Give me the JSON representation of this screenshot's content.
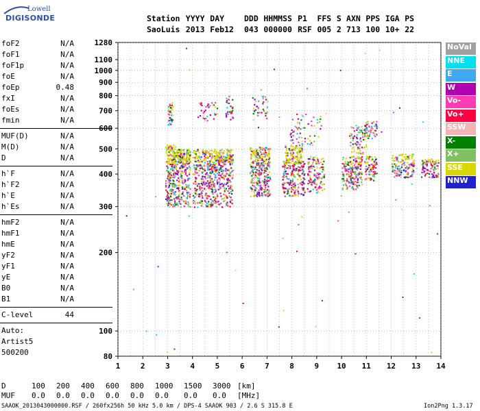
{
  "brand": {
    "line1": "Lowell",
    "line2": "DIGISONDE"
  },
  "header": {
    "labels": [
      "Station",
      "YYYY",
      "DAY",
      "DDD",
      "HHMMSS",
      "P1",
      "FFS",
      "S",
      "AXN",
      "PPS",
      "IGA",
      "PS"
    ],
    "values": [
      "SaoLuis",
      "2013",
      "Feb12",
      "043",
      "000000",
      "RSF",
      "005",
      "2",
      "713",
      "100",
      "10+",
      "22"
    ]
  },
  "params": {
    "group1": [
      {
        "label": "foF2",
        "value": "N/A"
      },
      {
        "label": "foF1",
        "value": "N/A"
      },
      {
        "label": "foF1p",
        "value": "N/A"
      },
      {
        "label": "foE",
        "value": "N/A"
      },
      {
        "label": "foEp",
        "value": "0.48"
      },
      {
        "label": "fxI",
        "value": "N/A"
      },
      {
        "label": "foEs",
        "value": "N/A"
      },
      {
        "label": "fmin",
        "value": "N/A"
      }
    ],
    "group2": [
      {
        "label": "MUF(D)",
        "value": "N/A"
      },
      {
        "label": "M(D)",
        "value": "N/A"
      },
      {
        "label": "D",
        "value": "N/A"
      }
    ],
    "group3": [
      {
        "label": "h`F",
        "value": "N/A"
      },
      {
        "label": "h`F2",
        "value": "N/A"
      },
      {
        "label": "h`E",
        "value": "N/A"
      },
      {
        "label": "h`Es",
        "value": "N/A"
      }
    ],
    "group4": [
      {
        "label": "hmF2",
        "value": "N/A"
      },
      {
        "label": "hmF1",
        "value": "N/A"
      },
      {
        "label": "hmE",
        "value": "N/A"
      },
      {
        "label": "yF2",
        "value": "N/A"
      },
      {
        "label": "yF1",
        "value": "N/A"
      },
      {
        "label": "yE",
        "value": "N/A"
      },
      {
        "label": "B0",
        "value": "N/A"
      },
      {
        "label": "B1",
        "value": "N/A"
      }
    ],
    "clevel": {
      "label": "C-level",
      "value": "44"
    },
    "auto": [
      "Auto:",
      "Artist5",
      "500200"
    ]
  },
  "legend": [
    {
      "label": "NoVal",
      "color": "#a0a0a0"
    },
    {
      "label": "NNE",
      "color": "#00e0f0"
    },
    {
      "label": "E",
      "color": "#40a8f0"
    },
    {
      "label": "W",
      "color": "#b000b0"
    },
    {
      "label": "Vo-",
      "color": "#ff3cb4"
    },
    {
      "label": "Vo+",
      "color": "#ff0040"
    },
    {
      "label": "SSW",
      "color": "#f4b4b4"
    },
    {
      "label": "X-",
      "color": "#008000"
    },
    {
      "label": "X+",
      "color": "#80c060"
    },
    {
      "label": "SSE",
      "color": "#d8d800"
    },
    {
      "label": "NNW",
      "color": "#2020d0"
    }
  ],
  "chart_data": {
    "type": "scatter",
    "xlim": [
      1,
      14
    ],
    "ylim": [
      80,
      1280
    ],
    "y_scale": "log",
    "x_ticks": [
      "1",
      "2",
      "3",
      "4",
      "5",
      "6",
      "7",
      "8",
      "9",
      "10",
      "11",
      "12",
      "13",
      "14"
    ],
    "y_ticks": [
      "80",
      "100",
      "200",
      "300",
      "400",
      "500",
      "600",
      "700",
      "800",
      "900",
      "1000",
      "1100",
      "1280"
    ],
    "grid": true,
    "clusters": [
      {
        "x": [
          2.9,
          3.3
        ],
        "y": [
          300,
          520
        ],
        "n": 240
      },
      {
        "x": [
          3.0,
          3.2
        ],
        "y": [
          620,
          760
        ],
        "n": 40
      },
      {
        "x": [
          3.3,
          3.9
        ],
        "y": [
          300,
          500
        ],
        "n": 220
      },
      {
        "x": [
          3.4,
          3.9
        ],
        "y": [
          440,
          500
        ],
        "n": 70
      },
      {
        "x": [
          4.0,
          5.0
        ],
        "y": [
          300,
          440
        ],
        "n": 300
      },
      {
        "x": [
          4.0,
          5.0
        ],
        "y": [
          440,
          500
        ],
        "n": 120
      },
      {
        "x": [
          4.2,
          5.0
        ],
        "y": [
          640,
          760
        ],
        "n": 35
      },
      {
        "x": [
          5.0,
          5.6
        ],
        "y": [
          300,
          470
        ],
        "n": 180
      },
      {
        "x": [
          5.0,
          5.6
        ],
        "y": [
          445,
          500
        ],
        "n": 80
      },
      {
        "x": [
          5.3,
          5.6
        ],
        "y": [
          650,
          800
        ],
        "n": 30
      },
      {
        "x": [
          6.3,
          7.1
        ],
        "y": [
          330,
          440
        ],
        "n": 220
      },
      {
        "x": [
          6.3,
          7.1
        ],
        "y": [
          440,
          510
        ],
        "n": 140
      },
      {
        "x": [
          6.4,
          7.0
        ],
        "y": [
          650,
          800
        ],
        "n": 35
      },
      {
        "x": [
          7.6,
          8.5
        ],
        "y": [
          330,
          450
        ],
        "n": 220
      },
      {
        "x": [
          7.7,
          8.4
        ],
        "y": [
          440,
          520
        ],
        "n": 110
      },
      {
        "x": [
          7.9,
          9.2
        ],
        "y": [
          520,
          700
        ],
        "n": 60
      },
      {
        "x": [
          8.6,
          9.3
        ],
        "y": [
          340,
          470
        ],
        "n": 130
      },
      {
        "x": [
          10.0,
          10.8
        ],
        "y": [
          350,
          470
        ],
        "n": 200
      },
      {
        "x": [
          10.3,
          11.0
        ],
        "y": [
          480,
          620
        ],
        "n": 80
      },
      {
        "x": [
          10.9,
          11.4
        ],
        "y": [
          380,
          470
        ],
        "n": 90
      },
      {
        "x": [
          10.9,
          11.4
        ],
        "y": [
          550,
          640
        ],
        "n": 50
      },
      {
        "x": [
          12.0,
          12.9
        ],
        "y": [
          390,
          480
        ],
        "n": 150
      },
      {
        "x": [
          13.2,
          13.9
        ],
        "y": [
          390,
          460
        ],
        "n": 100
      }
    ]
  },
  "footer": {
    "d_label": "D",
    "d_values": [
      "100",
      "200",
      "400",
      "600",
      "800",
      "1000",
      "1500",
      "3000",
      "[km]"
    ],
    "muf_label": "MUF",
    "muf_values": [
      "0.0",
      "0.0",
      "0.0",
      "0.0",
      "0.0",
      "0.0",
      "0.0",
      "0.0",
      "[MHz]"
    ],
    "info": "SAAOK_2013043000000.RSF / 260fx256h 50 kHz 5.0 km / DPS-4 SAAOK 903 / 2.6 S 315.8 E",
    "version": "Ion2Png 1.3.17"
  }
}
